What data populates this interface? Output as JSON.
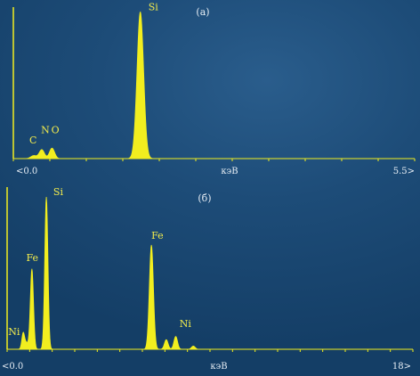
{
  "chart_data": [
    {
      "type": "area",
      "title": "(а)",
      "xlabel": "кэВ",
      "xlim": [
        0.0,
        5.5
      ],
      "x_min_label": "<0.0",
      "x_max_label": "5.5>",
      "ylim": [
        0,
        100
      ],
      "color": "#f2ee1f",
      "peaks": [
        {
          "label": "C",
          "x": 0.28,
          "height": 2,
          "width": 0.04
        },
        {
          "label": "N",
          "x": 0.39,
          "height": 6,
          "width": 0.035
        },
        {
          "label": "O",
          "x": 0.53,
          "height": 7,
          "width": 0.035
        },
        {
          "label": "Si",
          "x": 1.74,
          "height": 98,
          "width": 0.045
        }
      ],
      "peak_labels": [
        {
          "text": "C",
          "x": 0.22,
          "y": 10
        },
        {
          "text": "N",
          "x": 0.38,
          "y": 17
        },
        {
          "text": "O",
          "x": 0.52,
          "y": 17
        },
        {
          "text": "Si",
          "x": 1.85,
          "y": 99
        }
      ]
    },
    {
      "type": "area",
      "title": "(б)",
      "xlabel": "кэВ",
      "xlim": [
        0.0,
        18
      ],
      "x_min_label": "<0.0",
      "x_max_label": "18>",
      "ylim": [
        0,
        100
      ],
      "color": "#f2ee1f",
      "peaks": [
        {
          "label": "Ni",
          "x": 0.85,
          "height": 4,
          "width": 0.1
        },
        {
          "label": "Fe",
          "x": 0.71,
          "height": 9,
          "width": 0.06
        },
        {
          "label": "Fe",
          "x": 1.1,
          "height": 50,
          "width": 0.07
        },
        {
          "label": "Si",
          "x": 1.74,
          "height": 95,
          "width": 0.07
        },
        {
          "label": "Fe",
          "x": 6.4,
          "height": 65,
          "width": 0.09
        },
        {
          "label": "Fe",
          "x": 7.06,
          "height": 6,
          "width": 0.08
        },
        {
          "label": "Ni",
          "x": 7.48,
          "height": 8,
          "width": 0.08
        },
        {
          "label": "Ni",
          "x": 8.26,
          "height": 2,
          "width": 0.08
        }
      ],
      "peak_labels": [
        {
          "text": "Ni",
          "x": 0.05,
          "y": 9
        },
        {
          "text": "Fe",
          "x": 0.85,
          "y": 55
        },
        {
          "text": "Si",
          "x": 2.05,
          "y": 96
        },
        {
          "text": "Fe",
          "x": 6.4,
          "y": 69
        },
        {
          "text": "Ni",
          "x": 7.65,
          "y": 14
        }
      ]
    }
  ]
}
